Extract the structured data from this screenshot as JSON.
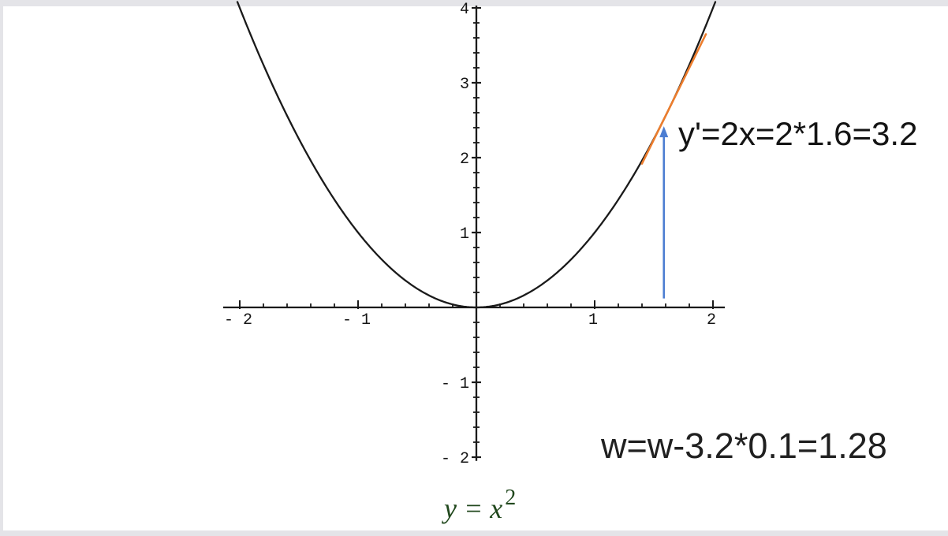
{
  "slide": {
    "background_color": "#ffffff",
    "canvas_color": "#e4e4e8"
  },
  "chart_data": {
    "type": "line",
    "title": "",
    "xlabel": "",
    "ylabel": "",
    "grid": false,
    "legend": "none",
    "axis_color": "#1a1a1a",
    "tick_label_color": "#161616",
    "xlim": [
      -2.14,
      2.1
    ],
    "ylim": [
      -2.05,
      4.03
    ],
    "minor_tick_step": 0.2,
    "x_minor_range": [
      -2,
      2
    ],
    "y_minor_range": [
      -2,
      4
    ],
    "x_ticks": [
      {
        "value": -2,
        "label": "- 2"
      },
      {
        "value": -1,
        "label": "- 1"
      },
      {
        "value": 1,
        "label": "1"
      },
      {
        "value": 2,
        "label": "2"
      }
    ],
    "y_ticks": [
      {
        "value": -2,
        "label": "- 2"
      },
      {
        "value": -1,
        "label": "- 1"
      },
      {
        "value": 1,
        "label": "1"
      },
      {
        "value": 2,
        "label": "2"
      },
      {
        "value": 3,
        "label": "3"
      },
      {
        "value": 4,
        "label": "4"
      }
    ],
    "series": [
      {
        "name": "y = x^2",
        "fn": "x^2",
        "x_min": -2.02,
        "x_max": 2.02,
        "color": "#1a1a1a",
        "key_points": [
          {
            "x": -2,
            "y": 4
          },
          {
            "x": 0,
            "y": 0
          },
          {
            "x": 1.6,
            "y": 2.56
          },
          {
            "x": 2,
            "y": 4
          }
        ]
      }
    ],
    "tangent": {
      "at_x": 1.6,
      "at_y": 2.56,
      "slope": 3.2,
      "x_start": 1.4,
      "x_end": 1.94,
      "color": "#ec7d2d"
    },
    "arrow": {
      "x": 1.585,
      "y_from": 0.12,
      "y_to": 2.42,
      "color": "#4d7ed2"
    },
    "annotations": {
      "derivative_text": "y'=2x=2*1.6=3.2",
      "derivative_text_color": "#141414",
      "weight_update_text": "w=w-3.2*0.1=1.28",
      "weight_update_text_color": "#202020",
      "formula_base": "y = x",
      "formula_superscript": "2",
      "formula_color": "#21481d"
    }
  }
}
